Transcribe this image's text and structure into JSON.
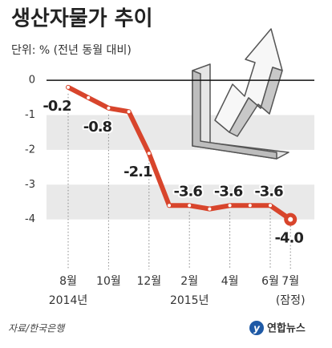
{
  "chart_data": {
    "type": "line",
    "title": "생산자물가 추이",
    "subtitle": "단위: % (전년 동월 대비)",
    "categories": [
      "8월",
      null,
      "10월",
      null,
      "12월",
      null,
      "2월",
      null,
      "4월",
      null,
      "6월",
      "7월"
    ],
    "category_years": [
      "2014년",
      null,
      null,
      null,
      null,
      null,
      "2015년",
      null,
      null,
      null,
      null,
      null
    ],
    "category_notes": [
      null,
      null,
      null,
      null,
      null,
      null,
      null,
      null,
      null,
      null,
      null,
      "(잠정)"
    ],
    "series": [
      {
        "name": "생산자물가",
        "color": "#d8452c",
        "values": [
          -0.2,
          -0.5,
          -0.8,
          -0.9,
          -2.1,
          -3.6,
          -3.6,
          -3.7,
          -3.6,
          -3.6,
          -3.6,
          -4.0
        ],
        "value_labels": [
          "-0.2",
          null,
          "-0.8",
          null,
          "-2.1",
          null,
          "-3.6",
          null,
          "-3.6",
          null,
          "-3.6",
          "-4.0"
        ]
      }
    ],
    "ylim": [
      -5.3,
      0.35
    ],
    "yticks": [
      0,
      -1,
      -2,
      -3,
      -4
    ],
    "source": "자료/한국은행",
    "publisher": "연합뉴스"
  }
}
